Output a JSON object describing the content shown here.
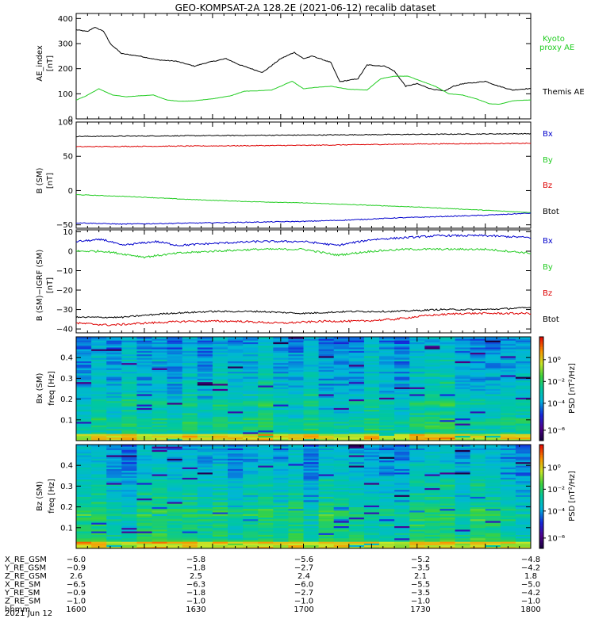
{
  "figure": {
    "title": "GEO-KOMPSAT-2A 128.2E (2021-06-12) recalib dataset",
    "date_label": "2021 Jun 12"
  },
  "colors": {
    "black": "#000000",
    "green": "#22cc22",
    "blue": "#0000cc",
    "red": "#dd0000"
  },
  "chart_data": [
    {
      "type": "line",
      "panel": "ae",
      "ylabel": "AE_index [nT]",
      "ylim": [
        0,
        420
      ],
      "yticks": [
        0,
        100,
        200,
        300,
        400
      ],
      "xlim": [
        1600,
        1800
      ],
      "xticks": [
        "1600",
        "1630",
        "1700",
        "1730",
        "1800"
      ],
      "series": [
        {
          "name": "Themis AE",
          "color": "black",
          "x": [
            1600,
            1605,
            1608,
            1612,
            1615,
            1620,
            1628,
            1636,
            1644,
            1652,
            1658,
            1666,
            1672,
            1682,
            1690,
            1696,
            1700,
            1704,
            1712,
            1716,
            1724,
            1728,
            1736,
            1740,
            1745,
            1750,
            1756,
            1762,
            1766,
            1770,
            1776,
            1780,
            1786,
            1792,
            1798
          ],
          "y": [
            355,
            348,
            365,
            350,
            300,
            260,
            250,
            235,
            230,
            210,
            225,
            240,
            215,
            185,
            240,
            265,
            240,
            250,
            225,
            148,
            160,
            215,
            210,
            190,
            130,
            140,
            120,
            110,
            130,
            140,
            145,
            150,
            130,
            115,
            120
          ]
        },
        {
          "name": "Kyoto proxy AE",
          "color": "green",
          "x": [
            1600,
            1604,
            1610,
            1616,
            1622,
            1628,
            1634,
            1640,
            1646,
            1652,
            1660,
            1668,
            1674,
            1680,
            1686,
            1690,
            1695,
            1700,
            1705,
            1712,
            1720,
            1728,
            1734,
            1740,
            1746,
            1752,
            1758,
            1764,
            1770,
            1776,
            1782,
            1786,
            1792,
            1798
          ],
          "y": [
            75,
            90,
            120,
            95,
            88,
            92,
            95,
            75,
            70,
            72,
            80,
            92,
            110,
            112,
            115,
            130,
            150,
            120,
            125,
            130,
            118,
            115,
            160,
            170,
            170,
            150,
            130,
            100,
            95,
            80,
            60,
            58,
            72,
            75
          ]
        }
      ]
    },
    {
      "type": "line",
      "panel": "bsm",
      "ylabel": "B (SM) [nT]",
      "ylim": [
        -55,
        100
      ],
      "yticks": [
        -50,
        0,
        50,
        100
      ],
      "xlim": [
        1600,
        1800
      ],
      "series": [
        {
          "name": "Btot",
          "color": "black",
          "x": [
            1600,
            1650,
            1700,
            1750,
            1800
          ],
          "y": [
            79,
            80,
            81,
            82,
            83
          ]
        },
        {
          "name": "Bz",
          "color": "red",
          "x": [
            1600,
            1650,
            1700,
            1750,
            1800
          ],
          "y": [
            64,
            65,
            66,
            68,
            69
          ]
        },
        {
          "name": "By",
          "color": "green",
          "x": [
            1600,
            1625,
            1650,
            1675,
            1700,
            1725,
            1750,
            1775,
            1800
          ],
          "y": [
            -6,
            -9,
            -13,
            -16,
            -18,
            -21,
            -24,
            -28,
            -32
          ]
        },
        {
          "name": "Bx",
          "color": "blue",
          "x": [
            1600,
            1620,
            1640,
            1660,
            1680,
            1700,
            1720,
            1740,
            1760,
            1780,
            1800
          ],
          "y": [
            -47,
            -49,
            -48,
            -47,
            -46,
            -45,
            -43,
            -40,
            -38,
            -36,
            -33
          ]
        }
      ]
    },
    {
      "type": "line",
      "panel": "bigrf",
      "ylabel": "B (SM)-IGRF (SM) [nT]",
      "ylim": [
        -42,
        11
      ],
      "yticks": [
        -40,
        -30,
        -20,
        -10,
        0,
        10
      ],
      "xlim": [
        1600,
        1800
      ],
      "series": [
        {
          "name": "Bx",
          "color": "blue",
          "x": [
            1600,
            1612,
            1620,
            1635,
            1645,
            1660,
            1680,
            1700,
            1715,
            1730,
            1745,
            1760,
            1780,
            1800
          ],
          "y": [
            5,
            6,
            3,
            5,
            3,
            4,
            5,
            5,
            3,
            6,
            7,
            8,
            8,
            7
          ]
        },
        {
          "name": "By",
          "color": "green",
          "x": [
            1600,
            1612,
            1630,
            1645,
            1660,
            1680,
            1700,
            1715,
            1730,
            1745,
            1760,
            1780,
            1800
          ],
          "y": [
            0,
            0,
            -3,
            -1,
            0,
            1,
            1,
            -2,
            0,
            1,
            1,
            1,
            -1
          ]
        },
        {
          "name": "Bz",
          "color": "red",
          "x": [
            1600,
            1615,
            1630,
            1650,
            1670,
            1690,
            1710,
            1725,
            1740,
            1755,
            1770,
            1785,
            1800
          ],
          "y": [
            -37,
            -38,
            -37,
            -36,
            -36,
            -37,
            -36,
            -36,
            -35,
            -33,
            -32,
            -32,
            -32
          ]
        },
        {
          "name": "Btot",
          "color": "black",
          "x": [
            1600,
            1620,
            1640,
            1660,
            1680,
            1700,
            1720,
            1740,
            1760,
            1780,
            1800
          ],
          "y": [
            -34,
            -34,
            -32,
            -31,
            -31,
            -32,
            -31,
            -31,
            -30,
            -30,
            -29
          ]
        }
      ]
    },
    {
      "type": "heatmap",
      "panel": "bx_spec",
      "ylabel": "Bx (SM) freq [Hz]",
      "ylim": [
        0,
        0.5
      ],
      "yticks": [
        0.1,
        0.2,
        0.3,
        0.4
      ],
      "colorbar_label": "PSD [nT^2/Hz]",
      "colorbar_ticks": [
        "10^0",
        "10^-2",
        "10^-4",
        "10^-6"
      ]
    },
    {
      "type": "heatmap",
      "panel": "bz_spec",
      "ylabel": "Bz (SM) freq [Hz]",
      "ylim": [
        0,
        0.5
      ],
      "yticks": [
        0.1,
        0.2,
        0.3,
        0.4
      ],
      "colorbar_label": "PSD [nT^2/Hz]",
      "colorbar_ticks": [
        "10^0",
        "10^-2",
        "10^-4",
        "10^-6"
      ]
    }
  ],
  "panels": {
    "ae": {
      "ylabel_1": "AE_index",
      "ylabel_2": "[nT]",
      "yticks": [
        "0",
        "100",
        "200",
        "300",
        "400"
      ],
      "legend_1": "Kyoto",
      "legend_2": "proxy AE",
      "legend_3": "Themis AE"
    },
    "bsm": {
      "ylabel_1": "B (SM)",
      "ylabel_2": "[nT]",
      "yticks": [
        "−50",
        "0",
        "50",
        "100"
      ],
      "legend": [
        "Bx",
        "By",
        "Bz",
        "Btot"
      ]
    },
    "bigrf": {
      "ylabel_1": "B (SM)−IGRF (SM)",
      "ylabel_2": "[nT]",
      "yticks": [
        "−40",
        "−30",
        "−20",
        "−10",
        "0",
        "10"
      ],
      "legend": [
        "Bx",
        "By",
        "Bz",
        "Btot"
      ]
    },
    "bx_spec": {
      "ylabel_1": "Bx (SM)",
      "ylabel_2": "freq [Hz]",
      "yticks": [
        "0.1",
        "0.2",
        "0.3",
        "0.4"
      ],
      "cb_label": "PSD [nT²/Hz]",
      "cb_ticks": [
        "10⁰",
        "10⁻²",
        "10⁻⁴",
        "10⁻⁶"
      ]
    },
    "bz_spec": {
      "ylabel_1": "Bz (SM)",
      "ylabel_2": "freq [Hz]",
      "yticks": [
        "0.1",
        "0.2",
        "0.3",
        "0.4"
      ],
      "cb_label": "PSD [nT²/Hz]",
      "cb_ticks": [
        "10⁰",
        "10⁻²",
        "10⁻⁴",
        "10⁻⁶"
      ]
    }
  },
  "ephemeris": {
    "rows": [
      {
        "label": "X_RE_GSM",
        "values": [
          "−6.0",
          "−5.8",
          "−5.6",
          "−5.2",
          "−4.8"
        ]
      },
      {
        "label": "Y_RE_GSM",
        "values": [
          "−0.9",
          "−1.8",
          "−2.7",
          "−3.5",
          "−4.2"
        ]
      },
      {
        "label": "Z_RE_GSM",
        "values": [
          "2.6",
          "2.5",
          "2.4",
          "2.1",
          "1.8"
        ]
      },
      {
        "label": "X_RE_SM",
        "values": [
          "−6.5",
          "−6.3",
          "−6.0",
          "−5.5",
          "−5.0"
        ]
      },
      {
        "label": "Y_RE_SM",
        "values": [
          "−0.9",
          "−1.8",
          "−2.7",
          "−3.5",
          "−4.2"
        ]
      },
      {
        "label": "Z_RE_SM",
        "values": [
          "−1.0",
          "−1.0",
          "−1.0",
          "−1.0",
          "−1.0"
        ]
      },
      {
        "label": "hhmm",
        "values": [
          "1600",
          "1630",
          "1700",
          "1730",
          "1800"
        ]
      }
    ]
  }
}
